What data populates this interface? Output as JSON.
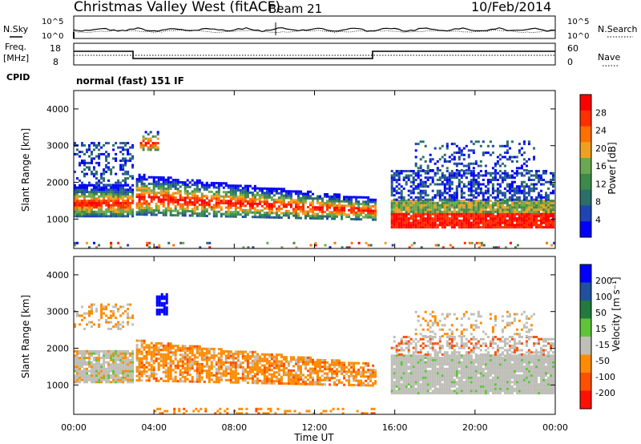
{
  "header": {
    "title": "Christmas Valley West (fitACF)",
    "beam": "Beam 21",
    "date": "10/Feb/2014"
  },
  "panels": {
    "nsky": {
      "label": "N.Sky",
      "right_label": "N.Search",
      "tick_hi": "10^5",
      "tick_lo": "10^0"
    },
    "freq": {
      "label_line1": "Freq.",
      "label_line2": "[MHz]",
      "right_label": "Nave",
      "left_ticks": [
        "18",
        "8"
      ],
      "right_ticks": [
        "60",
        "0"
      ]
    },
    "cpid": {
      "label": "CPID",
      "text": "normal (fast) 151 IF"
    }
  },
  "colors": {
    "power_scale": [
      "#0000ff",
      "#1f44b4",
      "#2c6e6a",
      "#3c8a4a",
      "#6aa84f",
      "#f0a020",
      "#ff7000",
      "#ff3000",
      "#ff0000"
    ],
    "velocity_scale": [
      "#0000ff",
      "#2050a0",
      "#227a3c",
      "#5ec43a",
      "#bfbfb8",
      "#ff8c00",
      "#ff5000",
      "#ff1000"
    ]
  },
  "chart_data": [
    {
      "type": "heatmap",
      "name": "power",
      "ylabel": "Slant Range [km]",
      "yticks": [
        "4000",
        "3000",
        "2000",
        "1000"
      ],
      "ylim": [
        200,
        4500
      ],
      "xlim": [
        "00:00",
        "24:00"
      ],
      "colorbar": {
        "label": "Power [dB]",
        "ticks": [
          "28",
          "24",
          "20",
          "16",
          "12",
          "8",
          "4"
        ]
      }
    },
    {
      "type": "heatmap",
      "name": "velocity",
      "ylabel": "Slant Range [km]",
      "yticks": [
        "4000",
        "3000",
        "2000",
        "1000"
      ],
      "ylim": [
        200,
        4500
      ],
      "xlim": [
        "00:00",
        "24:00"
      ],
      "xlabel": "Time UT",
      "xticks": [
        "00:00",
        "04:00",
        "08:00",
        "12:00",
        "16:00",
        "20:00",
        "00:00"
      ],
      "colorbar": {
        "label": "Velocity [m s⁻¹]",
        "ticks": [
          "200",
          "100",
          "50",
          "15",
          "-15",
          "-50",
          "-100",
          "-200"
        ]
      }
    }
  ]
}
